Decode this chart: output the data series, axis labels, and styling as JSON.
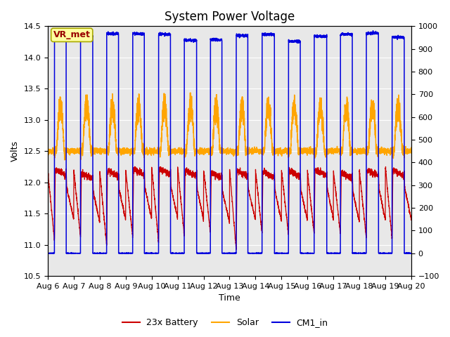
{
  "title": "System Power Voltage",
  "xlabel": "Time",
  "ylabel": "Volts",
  "ylim_left": [
    10.5,
    14.5
  ],
  "ylim_right": [
    -100,
    1000
  ],
  "yticks_left": [
    10.5,
    11.0,
    11.5,
    12.0,
    12.5,
    13.0,
    13.5,
    14.0,
    14.5
  ],
  "yticks_right": [
    -100,
    0,
    100,
    200,
    300,
    400,
    500,
    600,
    700,
    800,
    900,
    1000
  ],
  "annotation_text": "VR_met",
  "annotation_facecolor": "#FFFFA0",
  "annotation_edgecolor": "#AAAA00",
  "annotation_textcolor": "#990000",
  "bg_color": "#E8E8E8",
  "line_battery_color": "#CC0000",
  "line_solar_color": "#FFA500",
  "line_cm1_color": "#0000DD",
  "legend_labels": [
    "23x Battery",
    "Solar",
    "CM1_in"
  ],
  "title_fontsize": 12,
  "axis_fontsize": 9,
  "tick_fontsize": 8,
  "num_days": 14,
  "day_start": 6
}
